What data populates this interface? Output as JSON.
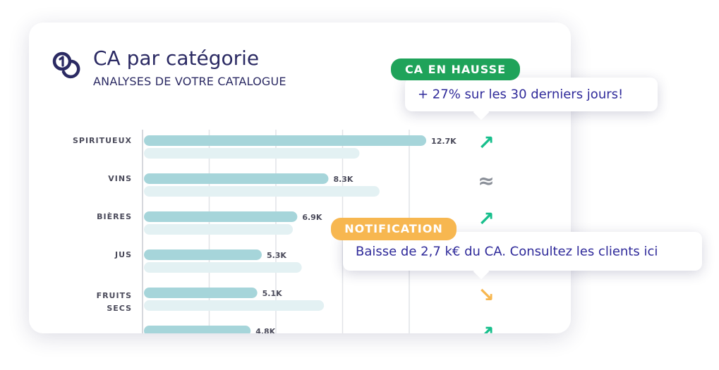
{
  "card": {
    "title": "CA par catégorie",
    "subtitle": "ANALYSES DE VOTRE CATALOGUE"
  },
  "popups": [
    {
      "badge": "CA EN HAUSSE",
      "badge_color": "#1fa35a",
      "message": "+ 27% sur les 30 derniers jours!"
    },
    {
      "badge": "NOTIFICATION",
      "badge_color": "#f7b750",
      "message": "Baisse de 2,7 k€ du CA. Consultez les clients ici"
    }
  ],
  "colors": {
    "current_bar": "#a6d5da",
    "previous_bar": "#e3f1f3",
    "trend_up": "#17bf8c",
    "trend_down": "#f7b750",
    "trend_flat": "#8a8f98",
    "text_dark": "#2b2a63"
  },
  "chart_data": {
    "type": "bar",
    "orientation": "horizontal",
    "categories": [
      "SPIRITUEUX",
      "VINS",
      "BIÈRES",
      "JUS",
      "FRUITS\nSECS",
      ""
    ],
    "series": [
      {
        "values": [
          12.7,
          8.3,
          6.9,
          5.3,
          5.1,
          4.8
        ],
        "labels": [
          "12.7K",
          "8.3K",
          "6.9K",
          "5.3K",
          "5.1K",
          "4.8K"
        ]
      },
      {
        "values": [
          9.7,
          10.6,
          6.7,
          7.1,
          8.1,
          null
        ]
      }
    ],
    "trends": [
      "up",
      "flat",
      "up",
      "",
      "down",
      "up"
    ],
    "trend_symbols": {
      "up": "↗",
      "down": "↘",
      "flat": "≈"
    },
    "xlim": [
      0,
      15
    ],
    "grid": true
  }
}
